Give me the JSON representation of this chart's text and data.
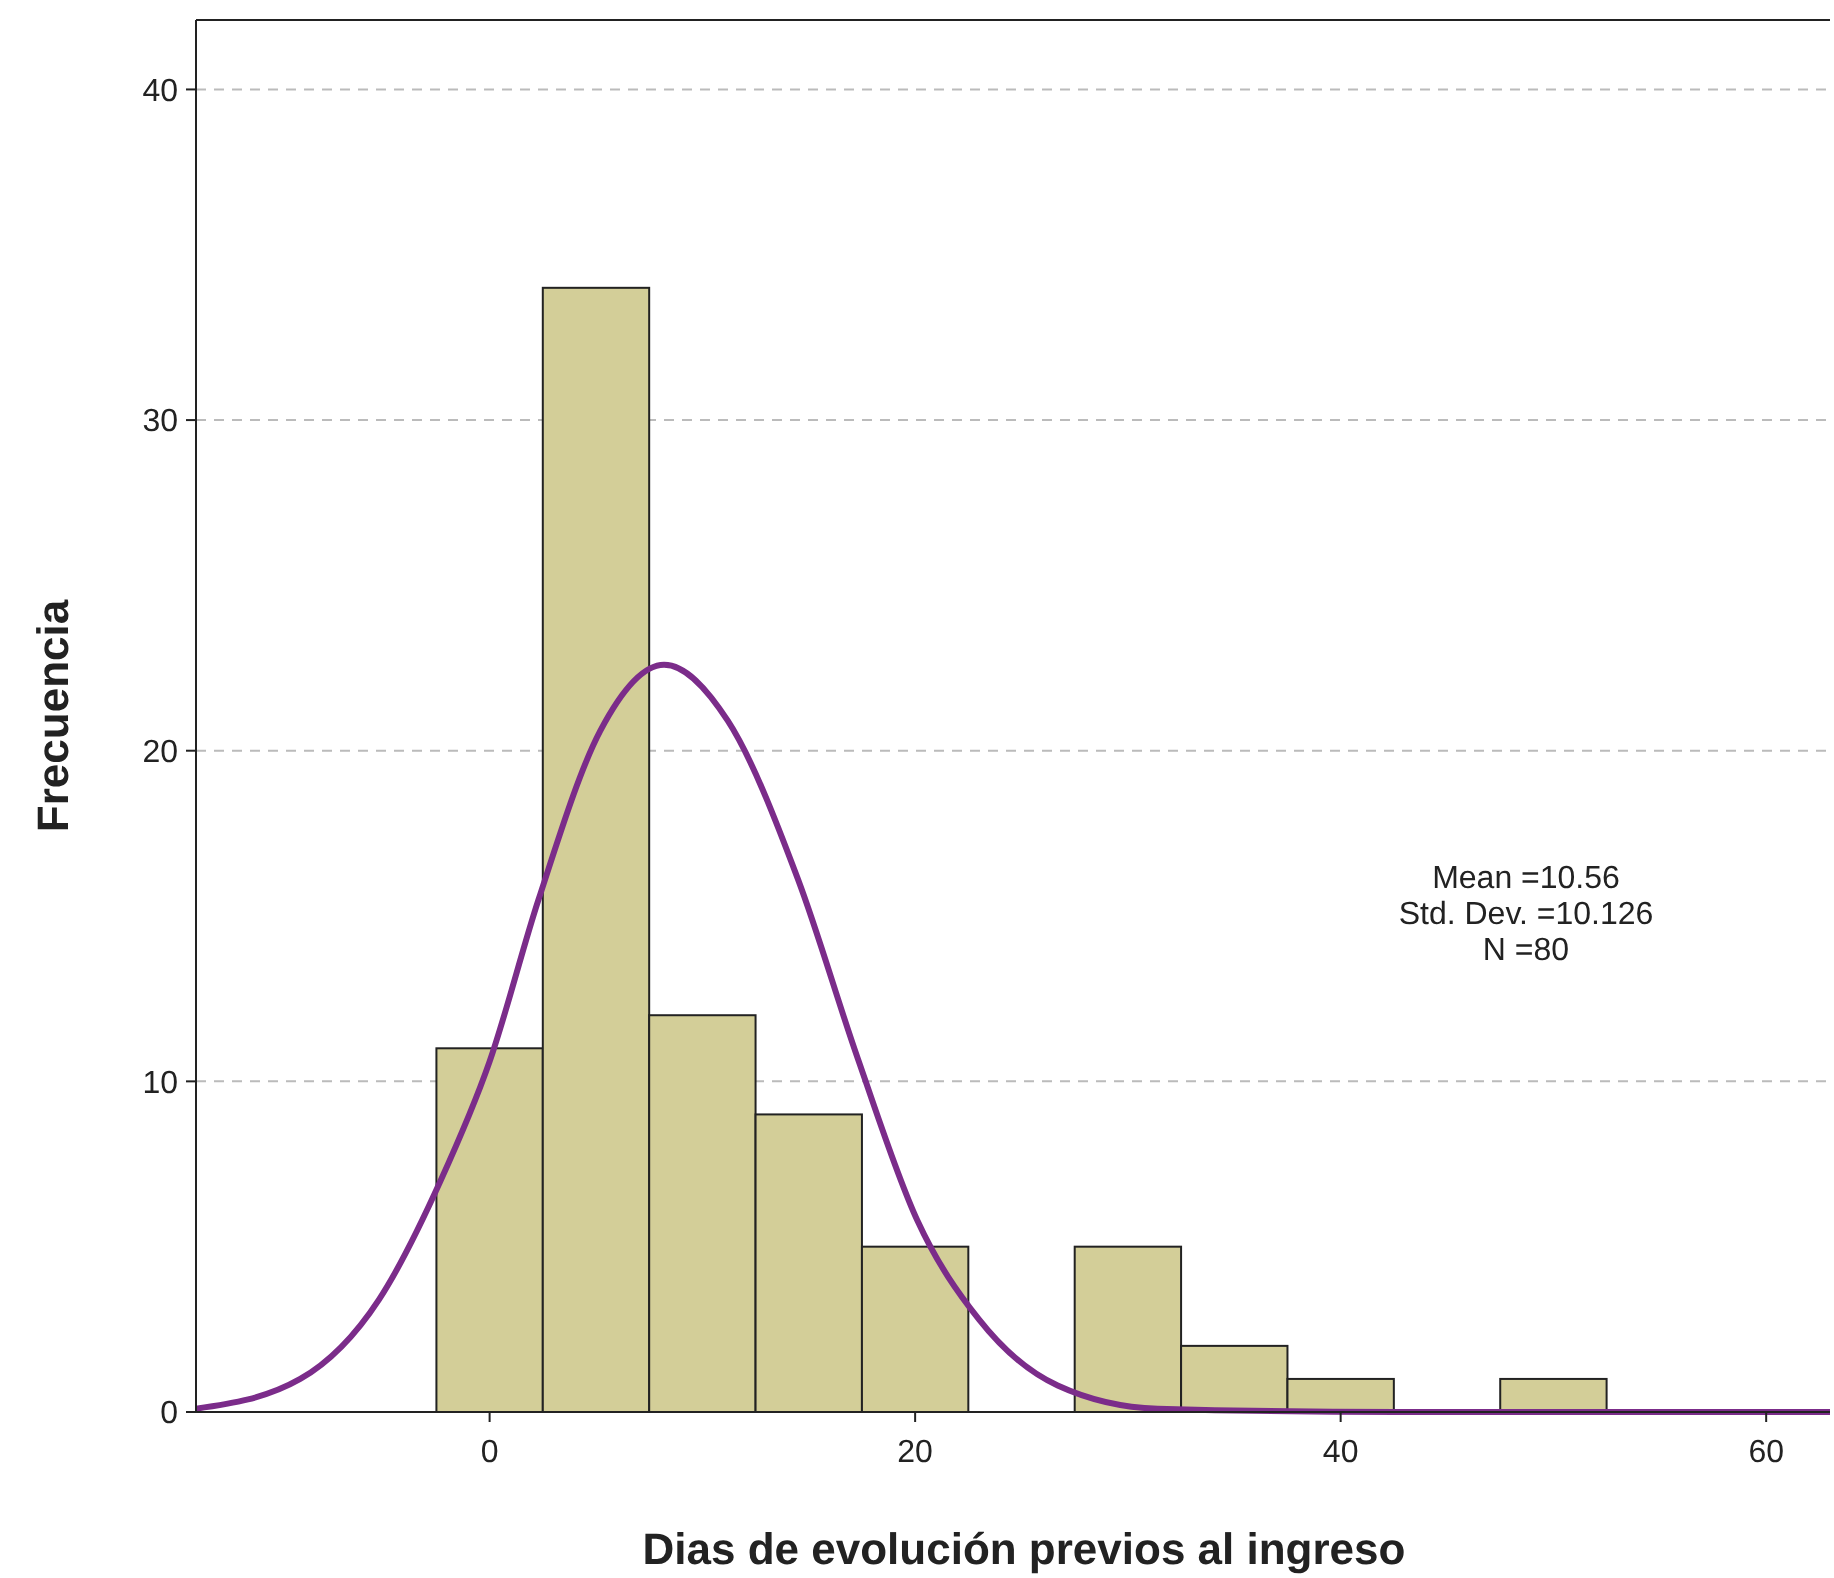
{
  "chart_data": {
    "type": "histogram",
    "xlabel": "Dias de evolución previos al ingreso",
    "ylabel": "Frecuencia",
    "bins": [
      -2.5,
      2.5,
      7.5,
      12.5,
      17.5,
      22.5,
      27.5,
      32.5,
      37.5,
      42.5,
      47.5,
      52.5
    ],
    "series": [
      {
        "color": "#d3ce98",
        "values": [
          11,
          34,
          12,
          9,
          5,
          0,
          5,
          2,
          1,
          0,
          1
        ]
      },
      {
        "type": "line",
        "color": "#7b2c8a",
        "x": [
          -13.8,
          -8.9,
          -5.2,
          -2.3,
          0,
          2.3,
          5.2,
          8.2,
          11.2,
          14.5,
          17.3,
          20.1,
          23,
          26.7,
          31.4,
          42.6,
          63
        ],
        "values": [
          0.1,
          1,
          3.4,
          7,
          10.6,
          15.5,
          20.6,
          22.6,
          20.9,
          16.1,
          10.7,
          5.8,
          2.8,
          0.8,
          0.1,
          0,
          0
        ]
      }
    ],
    "xlim": [
      -13.8,
      63
    ],
    "xticks": [
      0,
      20,
      40,
      60
    ],
    "ylim": [
      0,
      42.1
    ],
    "yticks": [
      0,
      10,
      20,
      30,
      40
    ],
    "grid": "y",
    "line_style": "solid",
    "marker": "none",
    "annotations": [
      "Mean =10.56",
      "Std. Dev. =10.126",
      "N =80"
    ]
  }
}
